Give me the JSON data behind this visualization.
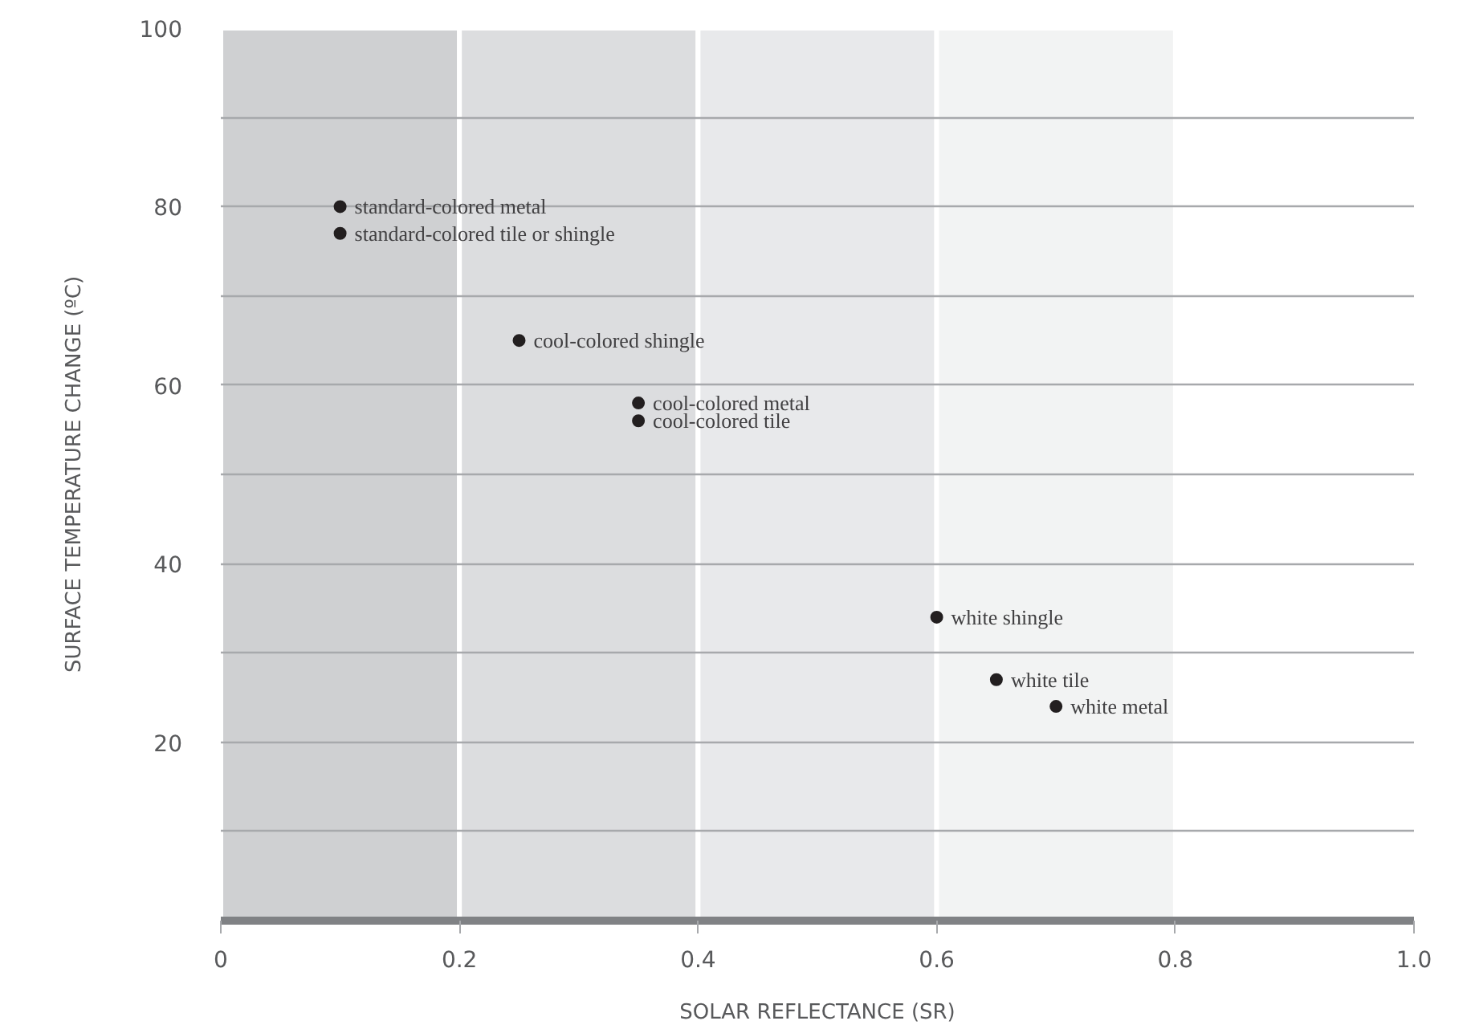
{
  "chart_data": {
    "type": "scatter",
    "xlabel": "SOLAR REFLECTANCE (SR)",
    "ylabel": "SURFACE TEMPERATURE CHANGE (ºC)",
    "x": [
      0.1,
      0.1,
      0.25,
      0.35,
      0.35,
      0.6,
      0.65,
      0.7
    ],
    "series": [
      {
        "color": "#231f20",
        "values": [
          80,
          77,
          65,
          58,
          56,
          34,
          27,
          24
        ]
      }
    ],
    "marker": "circle",
    "xlim": [
      0,
      1.0
    ],
    "ylim": [
      0,
      100
    ],
    "xticks": [
      0,
      0.2,
      0.4,
      0.6,
      0.8,
      {
        "value": 1.0,
        "label": "1.0"
      }
    ],
    "yticks": [
      {
        "value": 10,
        "label": null
      },
      20,
      {
        "value": 30,
        "label": null
      },
      40,
      {
        "value": 50,
        "label": null
      },
      60,
      {
        "value": 70,
        "label": null
      },
      80,
      {
        "value": 90,
        "label": null
      },
      100
    ],
    "grid": "y",
    "bands": [
      {
        "axis": "x",
        "from": 0,
        "to": 0.2,
        "color": "#cfd0d2"
      },
      {
        "axis": "x",
        "from": 0.2,
        "to": 0.4,
        "color": "#dcdddf"
      },
      {
        "axis": "x",
        "from": 0.4,
        "to": 0.6,
        "color": "#e8e9eb"
      },
      {
        "axis": "x",
        "from": 0.6,
        "to": 0.8,
        "color": "#f2f3f3"
      }
    ],
    "annotations": [
      {
        "text": "standard-colored metal",
        "x": 0.1,
        "y": 80
      },
      {
        "text": "standard-colored tile or shingle",
        "x": 0.1,
        "y": 77
      },
      {
        "text": "cool-colored shingle",
        "x": 0.25,
        "y": 65
      },
      {
        "text": "cool-colored metal",
        "x": 0.35,
        "y": 58
      },
      {
        "text": "cool-colored tile",
        "x": 0.35,
        "y": 56
      },
      {
        "text": "white shingle",
        "x": 0.6,
        "y": 34
      },
      {
        "text": "white tile",
        "x": 0.65,
        "y": 27
      },
      {
        "text": "white metal",
        "x": 0.7,
        "y": 24
      }
    ]
  }
}
